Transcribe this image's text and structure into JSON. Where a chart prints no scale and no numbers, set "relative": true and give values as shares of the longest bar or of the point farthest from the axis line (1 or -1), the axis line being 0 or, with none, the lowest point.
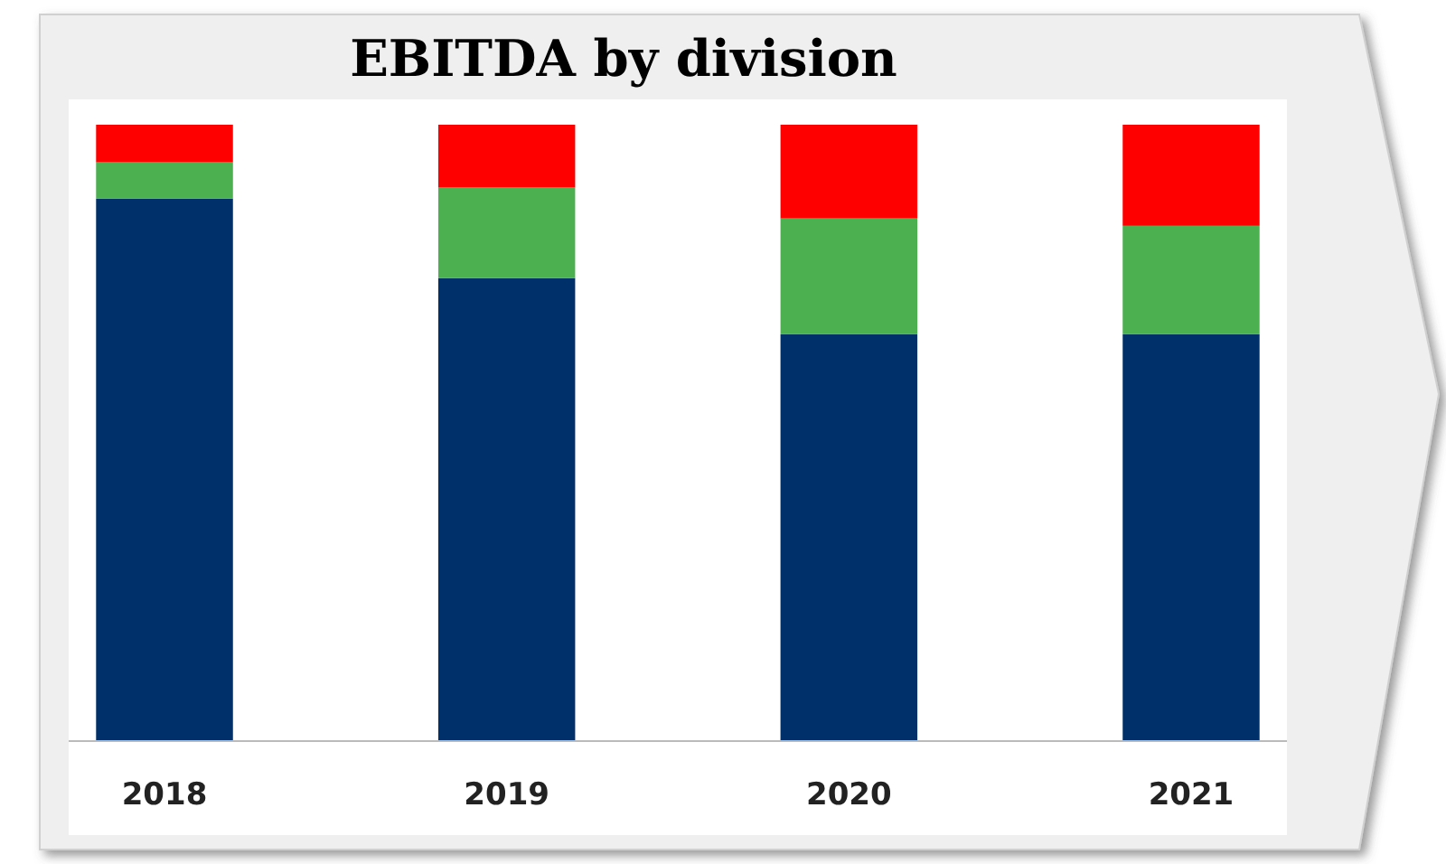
{
  "chart_data": {
    "type": "bar",
    "title": "EBITDA by division",
    "categories": [
      "2018",
      "2019",
      "2020",
      "2021"
    ],
    "stacked": true,
    "relative": true,
    "grid": false,
    "series": [
      {
        "color": "#00306a",
        "values": [
          0.88,
          0.751,
          0.66,
          0.66
        ]
      },
      {
        "color": "#4caf50",
        "values": [
          0.059,
          0.147,
          0.188,
          0.176
        ]
      },
      {
        "color": "#ff0000",
        "values": [
          0.061,
          0.102,
          0.152,
          0.164
        ]
      }
    ]
  }
}
